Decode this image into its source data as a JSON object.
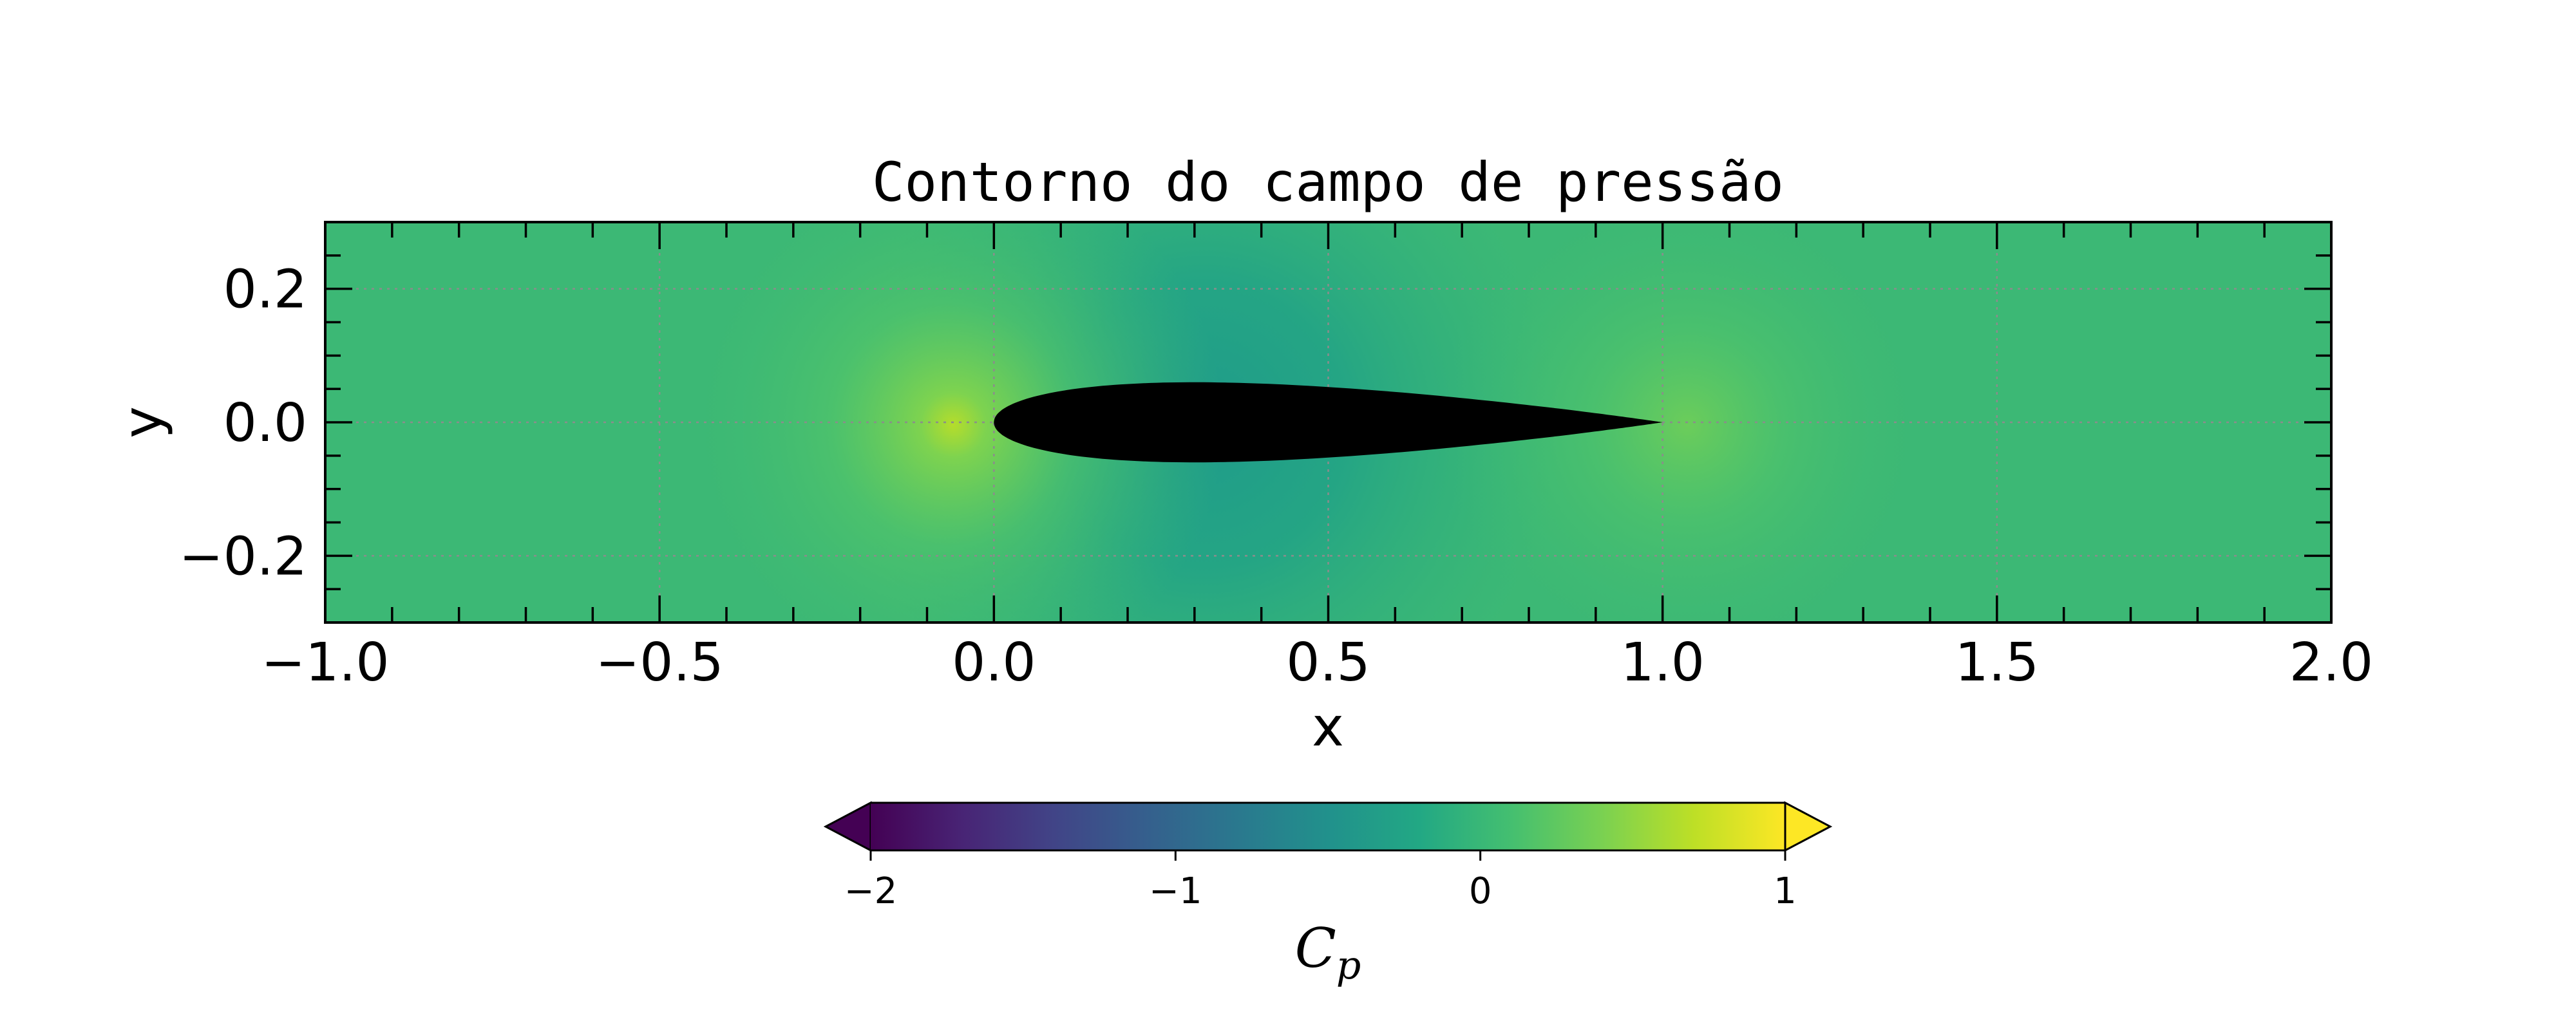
{
  "chart_data": {
    "type": "heatmap",
    "title": "Contorno do campo de pressão",
    "xlabel": "x",
    "ylabel": "y",
    "xlim": [
      -1.0,
      2.0
    ],
    "ylim": [
      -0.3,
      0.3
    ],
    "grid": true,
    "x_ticks": [
      -1.0,
      -0.5,
      0.0,
      0.5,
      1.0,
      1.5,
      2.0
    ],
    "x_tick_labels": [
      "−1.0",
      "−0.5",
      "0.0",
      "0.5",
      "1.0",
      "1.5",
      "2.0"
    ],
    "y_ticks": [
      0.2,
      0.0,
      -0.2
    ],
    "y_tick_labels": [
      "0.2",
      "0.0",
      "−0.2"
    ],
    "body": {
      "name": "airfoil",
      "leading_edge_x": 0.0,
      "trailing_edge_x": 1.0,
      "max_thickness_ratio": 0.12,
      "color": "#000000"
    },
    "field_samples": [
      {
        "x": -1.0,
        "y": 0.0,
        "cp": 0.15
      },
      {
        "x": -0.05,
        "y": 0.0,
        "cp": 0.5
      },
      {
        "x": 0.25,
        "y": 0.15,
        "cp": -0.35
      },
      {
        "x": 1.05,
        "y": 0.0,
        "cp": 0.3
      },
      {
        "x": 2.0,
        "y": 0.0,
        "cp": 0.05
      }
    ],
    "colorbar": {
      "label": "C",
      "label_subscript": "p",
      "colormap": "viridis",
      "range": [
        -2,
        1
      ],
      "extend": "both",
      "ticks": [
        -2,
        -1,
        0,
        1
      ],
      "tick_labels": [
        "−2",
        "−1",
        "0",
        "1"
      ]
    }
  }
}
